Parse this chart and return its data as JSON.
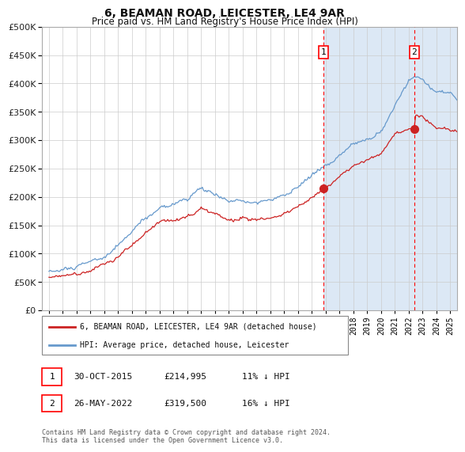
{
  "title": "6, BEAMAN ROAD, LEICESTER, LE4 9AR",
  "subtitle": "Price paid vs. HM Land Registry's House Price Index (HPI)",
  "fig_bg_color": "#ffffff",
  "plot_bg_color": "#ffffff",
  "shade_color": "#dce8f5",
  "hpi_line_color": "#6699cc",
  "price_line_color": "#cc2222",
  "marker1_x": 2015.83,
  "marker1_y": 214995,
  "marker2_x": 2022.4,
  "marker2_y": 319500,
  "marker1_date": "30-OCT-2015",
  "marker1_price": "£214,995",
  "marker1_hpi": "11% ↓ HPI",
  "marker2_date": "26-MAY-2022",
  "marker2_price": "£319,500",
  "marker2_hpi": "16% ↓ HPI",
  "xmin": 1995.5,
  "xmax": 2025.5,
  "ymin": 0,
  "ymax": 500000,
  "yticks": [
    0,
    50000,
    100000,
    150000,
    200000,
    250000,
    300000,
    350000,
    400000,
    450000,
    500000
  ],
  "legend_price_label": "6, BEAMAN ROAD, LEICESTER, LE4 9AR (detached house)",
  "legend_hpi_label": "HPI: Average price, detached house, Leicester",
  "footer": "Contains HM Land Registry data © Crown copyright and database right 2024.\nThis data is licensed under the Open Government Licence v3.0."
}
